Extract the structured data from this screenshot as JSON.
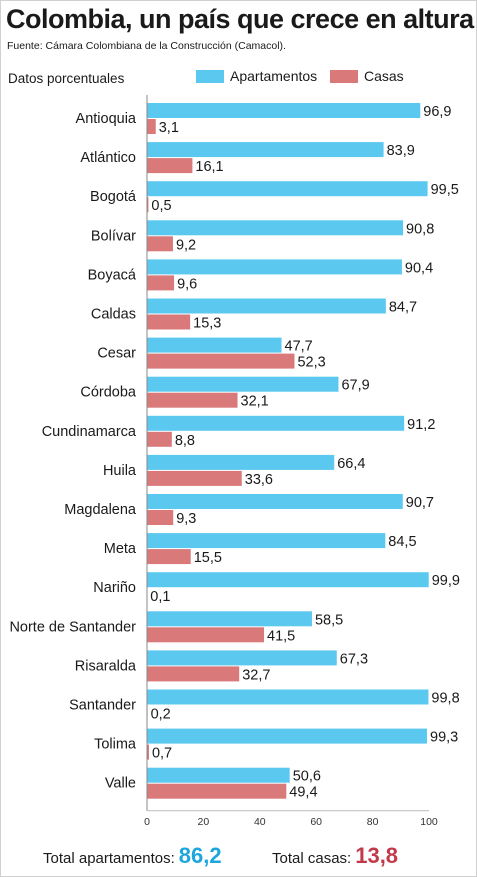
{
  "header": {
    "title": "Colombia, un país que crece en altura",
    "source": "Fuente: Cámara Colombiana de la Construcción (Camacol).",
    "subtitle": "Datos porcentuales"
  },
  "colors": {
    "apartamentos": "#5bc8ef",
    "casas": "#d9797a",
    "total_apartamentos": "#1ba7dd",
    "total_casas": "#c23a4a"
  },
  "chart_data": {
    "type": "bar",
    "orientation": "horizontal",
    "categories": [
      "Antioquia",
      "Atlántico",
      "Bogotá",
      "Bolívar",
      "Boyacá",
      "Caldas",
      "Cesar",
      "Córdoba",
      "Cundinamarca",
      "Huila",
      "Magdalena",
      "Meta",
      "Nariño",
      "Norte de Santander",
      "Risaralda",
      "Santander",
      "Tolima",
      "Valle"
    ],
    "series": [
      {
        "name": "Apartamentos",
        "values": [
          96.9,
          83.9,
          99.5,
          90.8,
          90.4,
          84.7,
          47.7,
          67.9,
          91.2,
          66.4,
          90.7,
          84.5,
          99.9,
          58.5,
          67.3,
          99.8,
          99.3,
          50.6
        ],
        "labels": [
          "96,9",
          "83,9",
          "99,5",
          "90,8",
          "90,4",
          "84,7",
          "47,7",
          "67,9",
          "91,2",
          "66,4",
          "90,7",
          "84,5",
          "99,9",
          "58,5",
          "67,3",
          "99,8",
          "99,3",
          "50,6"
        ]
      },
      {
        "name": "Casas",
        "values": [
          3.1,
          16.1,
          0.5,
          9.2,
          9.6,
          15.3,
          52.3,
          32.1,
          8.8,
          33.6,
          9.3,
          15.5,
          0.1,
          41.5,
          32.7,
          0.2,
          0.7,
          49.4
        ],
        "labels": [
          "3,1",
          "16,1",
          "0,5",
          "9,2",
          "9,6",
          "15,3",
          "52,3",
          "32,1",
          "8,8",
          "33,6",
          "9,3",
          "15,5",
          "0,1",
          "41,5",
          "32,7",
          "0,2",
          "0,7",
          "49,4"
        ]
      }
    ],
    "xlim": [
      0,
      100
    ],
    "ticks": [
      "0",
      "20",
      "40",
      "60",
      "80",
      "100"
    ],
    "legend": "top-right",
    "grid": false
  },
  "totals": {
    "apartamentos_label": "Total apartamentos:",
    "apartamentos_value": "86,2",
    "casas_label": "Total casas:",
    "casas_value": "13,8"
  }
}
